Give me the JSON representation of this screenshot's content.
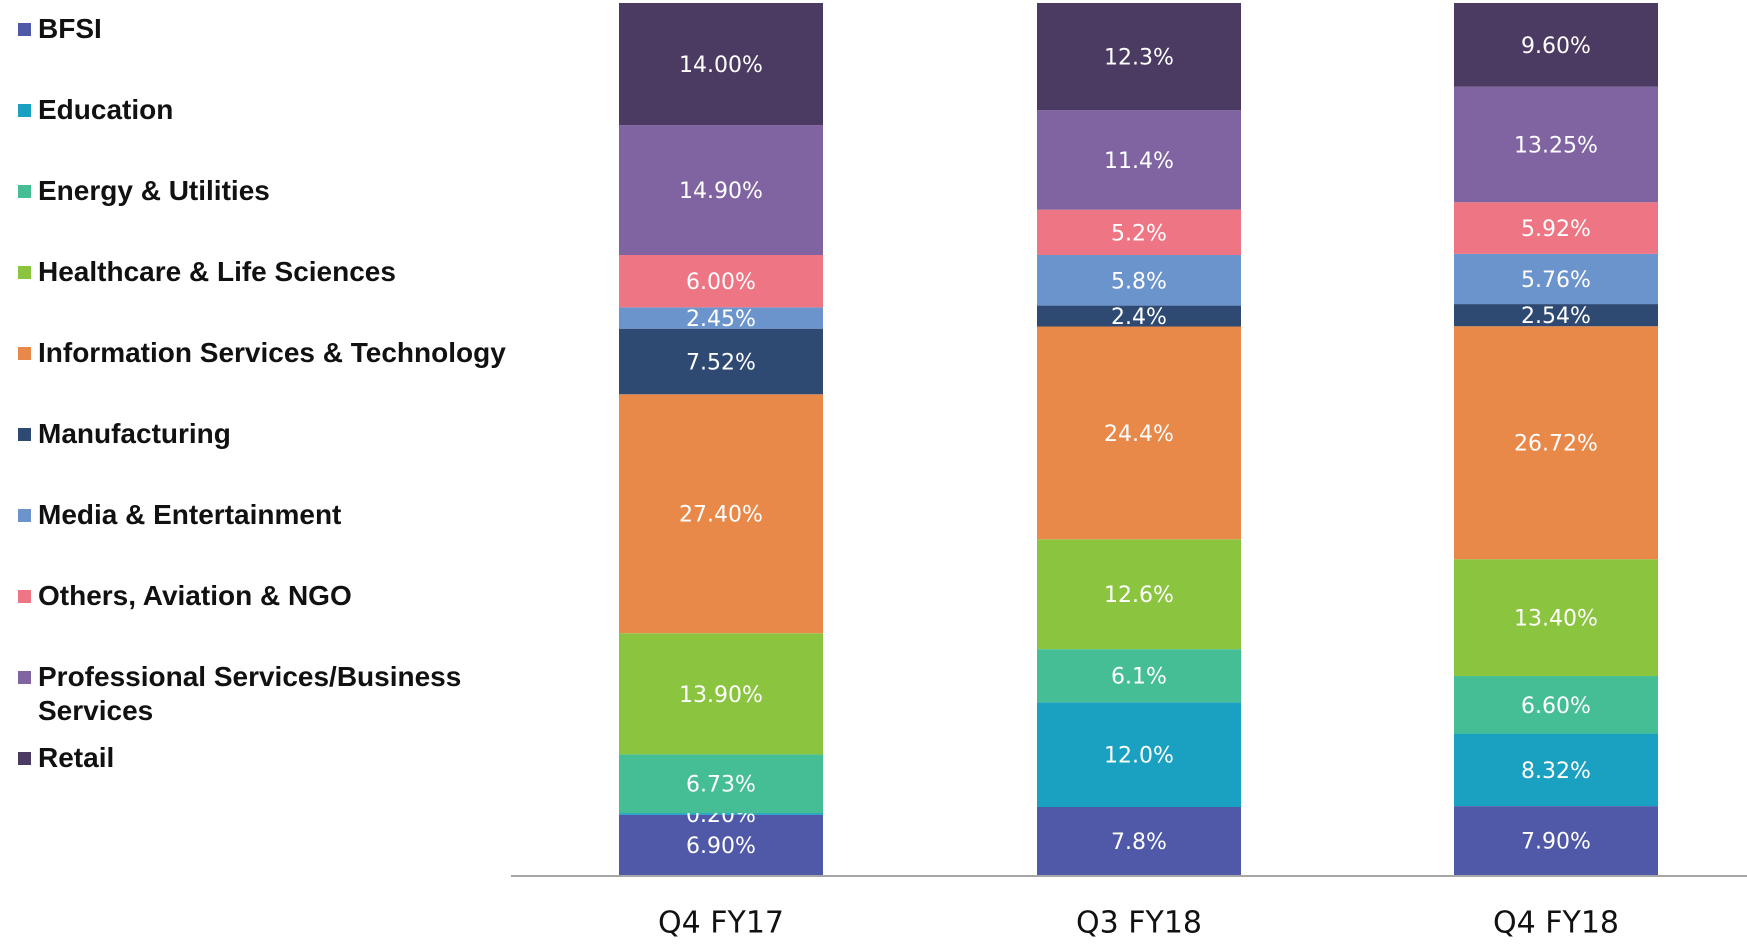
{
  "chart_data": {
    "type": "stacked_bar",
    "categories": [
      "Q4 FY17",
      "Q3 FY18",
      "Q4 FY18"
    ],
    "series": [
      {
        "name": "BFSI",
        "color": "#5058a8",
        "values": [
          6.9,
          7.8,
          7.9
        ],
        "value_labels": [
          "6.90%",
          "7.8%",
          "7.90%"
        ]
      },
      {
        "name": "Education",
        "color": "#1aa0c0",
        "values": [
          0.2,
          12.0,
          8.32
        ],
        "value_labels": [
          "0.20%",
          "12.0%",
          "8.32%"
        ]
      },
      {
        "name": "Energy & Utilities",
        "color": "#45be95",
        "values": [
          6.73,
          6.1,
          6.6
        ],
        "value_labels": [
          "6.73%",
          "6.1%",
          "6.60%"
        ]
      },
      {
        "name": "Healthcare & Life Sciences",
        "color": "#8bc53f",
        "values": [
          13.9,
          12.6,
          13.4
        ],
        "value_labels": [
          "13.90%",
          "12.6%",
          "13.40%"
        ]
      },
      {
        "name": "Information Services & Technology",
        "color": "#e8894a",
        "values": [
          27.4,
          24.4,
          26.72
        ],
        "value_labels": [
          "27.40%",
          "24.4%",
          "26.72%"
        ]
      },
      {
        "name": "Manufacturing",
        "color": "#2e4a72",
        "values": [
          7.52,
          2.4,
          2.54
        ],
        "value_labels": [
          "7.52%",
          "2.4%",
          "2.54%"
        ]
      },
      {
        "name": "Media & Entertainment",
        "color": "#6b93cc",
        "values": [
          2.45,
          5.8,
          5.76
        ],
        "value_labels": [
          "2.45%",
          "5.8%",
          "5.76%"
        ]
      },
      {
        "name": "Others, Aviation & NGO",
        "color": "#ee7583",
        "values": [
          6.0,
          5.2,
          5.92
        ],
        "value_labels": [
          "6.00%",
          "5.2%",
          "5.92%"
        ]
      },
      {
        "name": "Professional Services/Business Services",
        "color": "#8064a2",
        "values": [
          14.9,
          11.4,
          13.25
        ],
        "value_labels": [
          "14.90%",
          "11.4%",
          "13.25%"
        ]
      },
      {
        "name": "Retail",
        "color": "#4b3a62",
        "values": [
          14.0,
          12.3,
          9.6
        ],
        "value_labels": [
          "14.00%",
          "12.3%",
          "9.60%"
        ]
      }
    ],
    "legend": "left"
  }
}
